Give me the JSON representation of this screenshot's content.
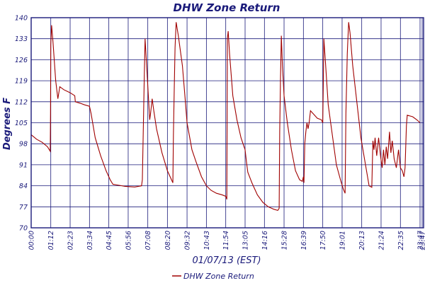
{
  "chart_data": {
    "type": "line",
    "title": "DHW Zone Return",
    "xlabel": "01/07/13 (EST)",
    "ylabel": "Degrees F",
    "ylim": [
      70,
      140
    ],
    "grid": true,
    "legend_position": "bottom-center",
    "colors": {
      "series": "#a00000",
      "grid": "#1a1a7a",
      "text": "#1a1a7a"
    },
    "x_ticks": [
      "00:00",
      "01:12",
      "02:23",
      "03:34",
      "04:45",
      "05:56",
      "07:08",
      "08:20",
      "09:32",
      "10:43",
      "11:54",
      "13:05",
      "14:16",
      "15:28",
      "16:39",
      "17:50",
      "19:01",
      "20:13",
      "21:24",
      "22:35",
      "23:47",
      "23:47"
    ],
    "y_ticks": [
      70,
      77,
      84,
      91,
      98,
      105,
      112,
      119,
      126,
      133,
      140
    ],
    "series": [
      {
        "name": "DHW Zone Return",
        "points": [
          [
            "00:00",
            101
          ],
          [
            "00:20",
            99.5
          ],
          [
            "00:40",
            98.5
          ],
          [
            "01:00",
            97
          ],
          [
            "01:10",
            95.5
          ],
          [
            "01:11",
            108
          ],
          [
            "01:12",
            131
          ],
          [
            "01:15",
            137.5
          ],
          [
            "01:20",
            132
          ],
          [
            "01:30",
            119
          ],
          [
            "01:38",
            113
          ],
          [
            "01:45",
            117
          ],
          [
            "02:00",
            116
          ],
          [
            "02:23",
            115
          ],
          [
            "02:40",
            114
          ],
          [
            "02:42",
            112
          ],
          [
            "03:00",
            111.5
          ],
          [
            "03:15",
            111
          ],
          [
            "03:34",
            110.5
          ],
          [
            "03:40",
            108
          ],
          [
            "03:55",
            100
          ],
          [
            "04:15",
            94
          ],
          [
            "04:35",
            89
          ],
          [
            "04:50",
            86
          ],
          [
            "05:00",
            84.5
          ],
          [
            "05:20",
            84.2
          ],
          [
            "05:45",
            83.8
          ],
          [
            "06:20",
            83.6
          ],
          [
            "06:45",
            84
          ],
          [
            "06:48",
            86
          ],
          [
            "06:55",
            120
          ],
          [
            "06:58",
            133
          ],
          [
            "07:05",
            122
          ],
          [
            "07:10",
            114
          ],
          [
            "07:15",
            106
          ],
          [
            "07:18",
            108
          ],
          [
            "07:24",
            113
          ],
          [
            "07:30",
            109
          ],
          [
            "07:40",
            103
          ],
          [
            "08:00",
            95
          ],
          [
            "08:20",
            89
          ],
          [
            "08:35",
            86
          ],
          [
            "08:40",
            85
          ],
          [
            "08:42",
            101
          ],
          [
            "08:45",
            116
          ],
          [
            "08:48",
            130
          ],
          [
            "08:52",
            138.5
          ],
          [
            "09:00",
            134
          ],
          [
            "09:15",
            124
          ],
          [
            "09:25",
            113
          ],
          [
            "09:32",
            105
          ],
          [
            "09:40",
            101
          ],
          [
            "09:50",
            96
          ],
          [
            "10:05",
            92
          ],
          [
            "10:25",
            87
          ],
          [
            "10:43",
            84
          ],
          [
            "11:00",
            82.5
          ],
          [
            "11:20",
            81.5
          ],
          [
            "11:40",
            81
          ],
          [
            "11:54",
            80.5
          ],
          [
            "11:58",
            79.5
          ],
          [
            "12:00",
            133
          ],
          [
            "12:03",
            135.5
          ],
          [
            "12:08",
            128
          ],
          [
            "12:20",
            114
          ],
          [
            "12:35",
            106
          ],
          [
            "12:50",
            100
          ],
          [
            "13:05",
            96
          ],
          [
            "13:10",
            92
          ],
          [
            "13:15",
            88.5
          ],
          [
            "13:30",
            85
          ],
          [
            "13:50",
            81
          ],
          [
            "14:10",
            78.5
          ],
          [
            "14:30",
            77
          ],
          [
            "14:50",
            76.2
          ],
          [
            "15:05",
            75.8
          ],
          [
            "15:10",
            76.5
          ],
          [
            "15:12",
            102
          ],
          [
            "15:15",
            120
          ],
          [
            "15:18",
            134
          ],
          [
            "15:22",
            124
          ],
          [
            "15:28",
            114
          ],
          [
            "15:40",
            105
          ],
          [
            "15:55",
            96
          ],
          [
            "16:10",
            89
          ],
          [
            "16:25",
            86
          ],
          [
            "16:35",
            85.5
          ],
          [
            "16:39",
            87
          ],
          [
            "16:41",
            85
          ],
          [
            "16:44",
            98
          ],
          [
            "16:48",
            102
          ],
          [
            "16:52",
            105
          ],
          [
            "16:56",
            103
          ],
          [
            "17:00",
            105
          ],
          [
            "17:05",
            109
          ],
          [
            "17:15",
            108
          ],
          [
            "17:30",
            106.5
          ],
          [
            "17:45",
            106
          ],
          [
            "17:50",
            105
          ],
          [
            "17:52",
            118
          ],
          [
            "17:54",
            133
          ],
          [
            "18:00",
            125
          ],
          [
            "18:10",
            111
          ],
          [
            "18:25",
            101
          ],
          [
            "18:40",
            91
          ],
          [
            "18:55",
            86
          ],
          [
            "19:05",
            83
          ],
          [
            "19:12",
            81.5
          ],
          [
            "19:15",
            108
          ],
          [
            "19:20",
            128
          ],
          [
            "19:25",
            138.5
          ],
          [
            "19:30",
            135
          ],
          [
            "19:40",
            124
          ],
          [
            "19:55",
            112
          ],
          [
            "20:10",
            100
          ],
          [
            "20:25",
            92
          ],
          [
            "20:40",
            84
          ],
          [
            "20:50",
            83.5
          ],
          [
            "20:54",
            99
          ],
          [
            "20:58",
            96
          ],
          [
            "21:02",
            100
          ],
          [
            "21:08",
            94
          ],
          [
            "21:15",
            100
          ],
          [
            "21:22",
            94
          ],
          [
            "21:28",
            90
          ],
          [
            "21:33",
            96
          ],
          [
            "21:38",
            91
          ],
          [
            "21:43",
            97
          ],
          [
            "21:48",
            93
          ],
          [
            "21:55",
            102
          ],
          [
            "22:00",
            95
          ],
          [
            "22:05",
            99
          ],
          [
            "22:12",
            93
          ],
          [
            "22:20",
            90
          ],
          [
            "22:28",
            96
          ],
          [
            "22:35",
            90
          ],
          [
            "22:42",
            89
          ],
          [
            "22:48",
            87
          ],
          [
            "22:52",
            90
          ],
          [
            "22:57",
            104
          ],
          [
            "23:00",
            107.5
          ],
          [
            "23:20",
            107
          ],
          [
            "23:35",
            106
          ],
          [
            "23:47",
            105
          ]
        ]
      }
    ]
  }
}
